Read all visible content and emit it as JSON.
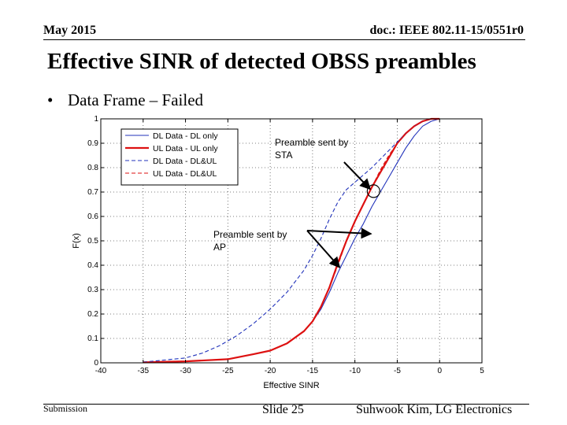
{
  "header": {
    "date": "May 2015",
    "doc": "doc.: IEEE 802.11-15/0551r0"
  },
  "slide": {
    "title": "Effective SINR of detected OBSS preambles",
    "bullet": "Data Frame – Failed",
    "bullet_marker": "•"
  },
  "footer": {
    "left": "Submission",
    "center": "Slide 25",
    "right": "Suhwook Kim, LG Electronics"
  },
  "chart_data": {
    "type": "line",
    "title": "",
    "xlabel": "Effective SINR",
    "ylabel": "F(x)",
    "xlim": [
      -40,
      5
    ],
    "ylim": [
      0,
      1
    ],
    "xticks": [
      -40,
      -35,
      -30,
      -25,
      -20,
      -15,
      -10,
      -5,
      0,
      5
    ],
    "xtick_labels": [
      "-40",
      "-35",
      "-30",
      "-25",
      "-20",
      "-15",
      "-10",
      "-5",
      "0",
      "5"
    ],
    "yticks": [
      0,
      0.1,
      0.2,
      0.3,
      0.4,
      0.5,
      0.6,
      0.7,
      0.8,
      0.9,
      1
    ],
    "ytick_labels": [
      "0",
      "0.1",
      "0.2",
      "0.3",
      "0.4",
      "0.5",
      "0.6",
      "0.7",
      "0.8",
      "0.9",
      "1"
    ],
    "grid": true,
    "legend_position": "top-left",
    "series": [
      {
        "name": "DL Data - DL only",
        "color": "#2233bb",
        "dash": "solid",
        "x": [
          -35,
          -30,
          -25,
          -22,
          -20,
          -18,
          -16,
          -15,
          -14,
          -13,
          -12,
          -11,
          -10,
          -9,
          -8,
          -7,
          -6,
          -5,
          -4,
          -3,
          -2,
          -1,
          0
        ],
        "y": [
          0.002,
          0.006,
          0.015,
          0.035,
          0.05,
          0.08,
          0.13,
          0.17,
          0.22,
          0.29,
          0.37,
          0.44,
          0.51,
          0.57,
          0.64,
          0.7,
          0.76,
          0.82,
          0.88,
          0.93,
          0.97,
          0.99,
          1.0
        ]
      },
      {
        "name": "UL Data - UL only",
        "color": "#dd1111",
        "dash": "solid",
        "x": [
          -35,
          -30,
          -25,
          -22,
          -20,
          -18,
          -16,
          -15,
          -14,
          -13,
          -12,
          -11,
          -10,
          -9,
          -8,
          -7,
          -6,
          -5,
          -4,
          -3,
          -2,
          -1,
          0
        ],
        "y": [
          0.002,
          0.006,
          0.015,
          0.035,
          0.05,
          0.08,
          0.13,
          0.17,
          0.23,
          0.31,
          0.41,
          0.5,
          0.58,
          0.65,
          0.72,
          0.78,
          0.84,
          0.9,
          0.94,
          0.97,
          0.99,
          1.0,
          1.0
        ]
      },
      {
        "name": "DL Data - DL&UL",
        "color": "#2233bb",
        "dash": "dashed",
        "x": [
          -35,
          -30,
          -28,
          -26,
          -24,
          -22,
          -20,
          -18,
          -16,
          -15,
          -14,
          -13,
          -12,
          -11,
          -10,
          -8,
          -6,
          -4,
          -3,
          -2,
          -1,
          0
        ],
        "y": [
          0.003,
          0.02,
          0.04,
          0.07,
          0.11,
          0.16,
          0.22,
          0.29,
          0.38,
          0.44,
          0.51,
          0.59,
          0.66,
          0.71,
          0.74,
          0.8,
          0.87,
          0.94,
          0.97,
          0.99,
          1.0,
          1.0
        ]
      },
      {
        "name": "UL Data - DL&UL",
        "color": "#dd1111",
        "dash": "dashed",
        "x": [
          -35,
          -30,
          -25,
          -22,
          -20,
          -18,
          -16,
          -15,
          -14,
          -13,
          -12,
          -11,
          -10,
          -9,
          -8,
          -7,
          -6,
          -5,
          -4,
          -3,
          -2,
          -1,
          0
        ],
        "y": [
          0.002,
          0.006,
          0.015,
          0.035,
          0.05,
          0.08,
          0.13,
          0.17,
          0.23,
          0.31,
          0.4,
          0.5,
          0.58,
          0.65,
          0.72,
          0.79,
          0.85,
          0.9,
          0.94,
          0.97,
          0.99,
          1.0,
          1.0
        ]
      }
    ],
    "annotations": [
      {
        "lines": [
          "Preamble sent by",
          "STA"
        ],
        "circle_at": [
          -7.8,
          0.71
        ],
        "arrow_from": [
          -11,
          0.84
        ],
        "arrow_to": [
          -8.2,
          0.725
        ]
      },
      {
        "lines": [
          "Preamble sent by",
          "AP"
        ],
        "arrow_from": [
          -15.5,
          0.55
        ],
        "arrow_to_1": [
          -11.8,
          0.63
        ],
        "arrow_to_2": [
          -9.3,
          0.535
        ]
      }
    ]
  }
}
